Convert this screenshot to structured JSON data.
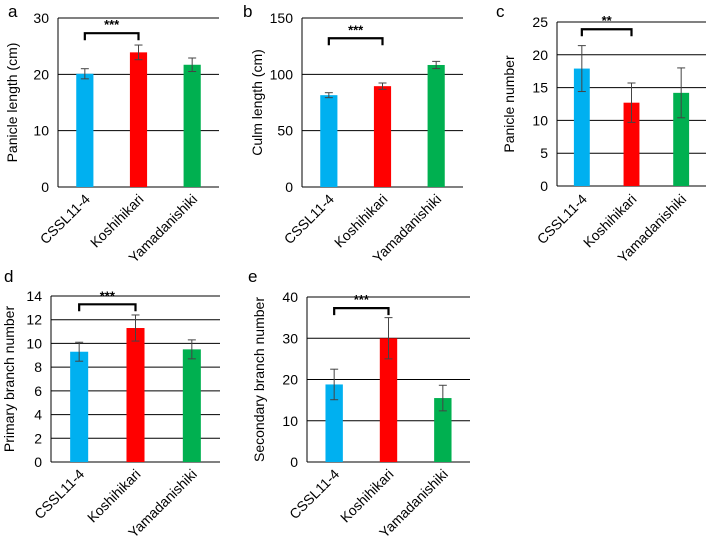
{
  "chart_data": [
    {
      "type": "bar",
      "panel_label": "a",
      "ylabel": "Panicle length (cm)",
      "categories": [
        "CSSL11-4",
        "Koshihikari",
        "Yamadanishiki"
      ],
      "values": [
        20.1,
        23.9,
        21.7
      ],
      "errors": [
        0.9,
        1.3,
        1.2
      ],
      "colors": [
        "#00b0f0",
        "#ff0000",
        "#00b050"
      ],
      "ylim": [
        0,
        30
      ],
      "yticks": [
        "0",
        "10",
        "20",
        "30"
      ],
      "significance": {
        "from": 0,
        "to": 1,
        "label": "***",
        "level": 27.3
      }
    },
    {
      "type": "bar",
      "panel_label": "b",
      "ylabel": "Culm length (cm)",
      "categories": [
        "CSSL11-4",
        "Koshihikari",
        "Yamadanishiki"
      ],
      "values": [
        81.5,
        89.5,
        108.3
      ],
      "errors": [
        2.2,
        2.8,
        3.2
      ],
      "colors": [
        "#00b0f0",
        "#ff0000",
        "#00b050"
      ],
      "ylim": [
        0,
        150
      ],
      "yticks": [
        "0",
        "50",
        "100",
        "150"
      ],
      "significance": {
        "from": 0,
        "to": 1,
        "label": "***",
        "level": 132
      }
    },
    {
      "type": "bar",
      "panel_label": "c",
      "ylabel": "Panicle number",
      "categories": [
        "CSSL11-4",
        "Koshihikari",
        "Yamadanishiki"
      ],
      "values": [
        17.9,
        12.7,
        14.2
      ],
      "errors": [
        3.5,
        3.0,
        3.8
      ],
      "colors": [
        "#00b0f0",
        "#ff0000",
        "#00b050"
      ],
      "ylim": [
        0,
        25
      ],
      "yticks": [
        "0",
        "5",
        "10",
        "15",
        "20",
        "25"
      ],
      "significance": {
        "from": 0,
        "to": 1,
        "label": "**",
        "level": 23.9
      }
    },
    {
      "type": "bar",
      "panel_label": "d",
      "ylabel": "Primary branch number",
      "categories": [
        "CSSL11-4",
        "Koshihikari",
        "Yamadanishiki"
      ],
      "values": [
        9.3,
        11.3,
        9.5
      ],
      "errors": [
        0.8,
        1.1,
        0.8
      ],
      "colors": [
        "#00b0f0",
        "#ff0000",
        "#00b050"
      ],
      "ylim": [
        0,
        14
      ],
      "yticks": [
        "0",
        "2",
        "4",
        "6",
        "8",
        "10",
        "12",
        "14"
      ],
      "significance": {
        "from": 0,
        "to": 1,
        "label": "***",
        "level": 13.3
      }
    },
    {
      "type": "bar",
      "panel_label": "e",
      "ylabel": "Secondary branch number",
      "categories": [
        "CSSL11-4",
        "Koshihikari",
        "Yamadanishiki"
      ],
      "values": [
        18.8,
        30.0,
        15.5
      ],
      "errors": [
        3.7,
        5.0,
        3.1
      ],
      "colors": [
        "#00b0f0",
        "#ff0000",
        "#00b050"
      ],
      "ylim": [
        0,
        40
      ],
      "yticks": [
        "0",
        "10",
        "20",
        "30",
        "40"
      ],
      "significance": {
        "from": 0,
        "to": 1,
        "label": "***",
        "level": 37.3
      }
    }
  ]
}
